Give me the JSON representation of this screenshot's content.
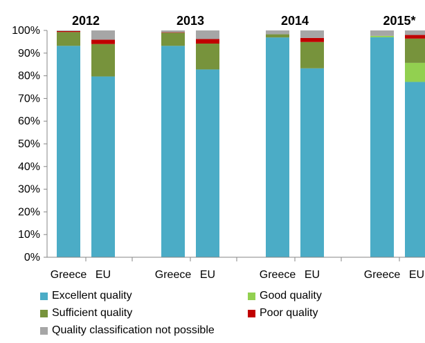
{
  "chart_data": {
    "type": "bar",
    "stacked": true,
    "groups": [
      "2012",
      "2013",
      "2014",
      "2015*"
    ],
    "categories": [
      "Greece",
      "EU"
    ],
    "y_tick_labels": [
      "0%",
      "10%",
      "20%",
      "30%",
      "40%",
      "50%",
      "60%",
      "70%",
      "80%",
      "90%",
      "100%"
    ],
    "ylim": [
      0,
      100
    ],
    "grid": false,
    "legend_position": "bottom",
    "series": [
      {
        "name": "Excellent quality",
        "color": "#4BACC6",
        "values": [
          [
            93.2,
            79.7
          ],
          [
            93.2,
            82.8
          ],
          [
            96.9,
            83.3
          ],
          [
            97.0,
            77.3
          ]
        ]
      },
      {
        "name": "Good quality",
        "color": "#92D050",
        "values": [
          [
            0,
            0
          ],
          [
            0,
            0
          ],
          [
            0,
            0
          ],
          [
            0.6,
            8.4
          ]
        ]
      },
      {
        "name": "Sufficient quality",
        "color": "#77933C",
        "values": [
          [
            6.1,
            14.3
          ],
          [
            5.8,
            11.4
          ],
          [
            1.4,
            11.6
          ],
          [
            0,
            10.7
          ]
        ]
      },
      {
        "name": "Poor quality",
        "color": "#C00000",
        "values": [
          [
            0.4,
            1.9
          ],
          [
            0.2,
            2.0
          ],
          [
            0,
            1.8
          ],
          [
            0,
            1.6
          ]
        ]
      },
      {
        "name": "Quality classification not possible",
        "color": "#A6A6A6",
        "values": [
          [
            0.3,
            4.1
          ],
          [
            0.8,
            3.8
          ],
          [
            1.7,
            3.3
          ],
          [
            2.4,
            2.0
          ]
        ]
      }
    ]
  }
}
